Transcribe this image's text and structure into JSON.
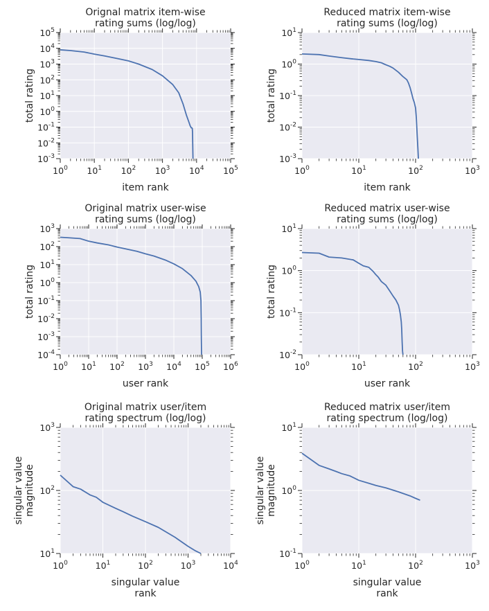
{
  "chart_data": [
    {
      "type": "line",
      "title": [
        "Orignal matrix item-wise",
        "rating sums (log/log)"
      ],
      "xlabel": [
        "item rank"
      ],
      "ylabel": [
        "total rating"
      ],
      "xscale": "log",
      "yscale": "log",
      "xlim": [
        0,
        5
      ],
      "ylim": [
        -3,
        5
      ],
      "x_ticks": [
        0,
        1,
        2,
        3,
        4,
        5
      ],
      "y_ticks": [
        -3,
        -2,
        -1,
        0,
        1,
        2,
        3,
        4,
        5
      ],
      "x": [
        1,
        2,
        5,
        10,
        20,
        50,
        100,
        200,
        500,
        1000,
        2000,
        3000,
        4000,
        5000,
        6000,
        6500,
        7000,
        7300,
        7500,
        7600,
        7700,
        7800,
        7850
      ],
      "y": [
        8000,
        7200,
        5800,
        4300,
        3300,
        2200,
        1600,
        1000,
        450,
        180,
        50,
        15,
        3,
        0.6,
        0.2,
        0.12,
        0.09,
        0.09,
        0.08,
        0.05,
        0.01,
        0.002,
        0.001
      ]
    },
    {
      "type": "line",
      "title": [
        "Reduced matrix item-wise",
        "rating sums (log/log)"
      ],
      "xlabel": [
        "item rank"
      ],
      "ylabel": [
        "total rating"
      ],
      "xscale": "log",
      "yscale": "log",
      "xlim": [
        0,
        3
      ],
      "ylim": [
        -3,
        1
      ],
      "x_ticks": [
        0,
        1,
        2,
        3
      ],
      "y_ticks": [
        -3,
        -2,
        -1,
        0,
        1
      ],
      "x": [
        1,
        2,
        3,
        5,
        8,
        10,
        15,
        20,
        25,
        30,
        35,
        40,
        50,
        60,
        70,
        75,
        80,
        85,
        90,
        95,
        100,
        103,
        105,
        107,
        110,
        112
      ],
      "y": [
        2.1,
        2.0,
        1.8,
        1.6,
        1.45,
        1.4,
        1.3,
        1.2,
        1.1,
        0.95,
        0.85,
        0.75,
        0.55,
        0.4,
        0.32,
        0.25,
        0.18,
        0.12,
        0.08,
        0.06,
        0.04,
        0.02,
        0.01,
        0.005,
        0.002,
        0.001
      ]
    },
    {
      "type": "line",
      "title": [
        "Original matrix user-wise",
        "rating sums (log/log)"
      ],
      "xlabel": [
        "user rank"
      ],
      "ylabel": [
        "total rating"
      ],
      "xscale": "log",
      "yscale": "log",
      "xlim": [
        0,
        6
      ],
      "ylim": [
        -4,
        3
      ],
      "x_ticks": [
        0,
        1,
        2,
        3,
        4,
        5,
        6
      ],
      "y_ticks": [
        -4,
        -3,
        -2,
        -1,
        0,
        1,
        2,
        3
      ],
      "x": [
        1,
        2,
        5,
        10,
        20,
        50,
        100,
        200,
        500,
        1000,
        2000,
        5000,
        10000,
        20000,
        40000,
        60000,
        75000,
        85000,
        90000,
        92000,
        93000,
        94000,
        95000
      ],
      "y": [
        330,
        310,
        280,
        200,
        160,
        125,
        95,
        75,
        55,
        40,
        30,
        18,
        11,
        6,
        2.5,
        1.2,
        0.6,
        0.3,
        0.1,
        0.01,
        0.001,
        0.0003,
        0.0001
      ]
    },
    {
      "type": "line",
      "title": [
        "Reduced matrix user-wise",
        "rating sums (log/log)"
      ],
      "xlabel": [
        "user rank"
      ],
      "ylabel": [
        "total rating"
      ],
      "xscale": "log",
      "yscale": "log",
      "xlim": [
        0,
        3
      ],
      "ylim": [
        -2,
        1
      ],
      "x_ticks": [
        0,
        1,
        2,
        3
      ],
      "y_ticks": [
        -2,
        -1,
        0,
        1
      ],
      "x": [
        1,
        2,
        3,
        5,
        8,
        10,
        12,
        15,
        18,
        20,
        22,
        25,
        30,
        35,
        40,
        45,
        50,
        52,
        54,
        56,
        57,
        58,
        59,
        60
      ],
      "y": [
        2.7,
        2.6,
        2.1,
        2.0,
        1.8,
        1.5,
        1.3,
        1.2,
        0.95,
        0.8,
        0.7,
        0.55,
        0.45,
        0.33,
        0.25,
        0.2,
        0.15,
        0.12,
        0.09,
        0.06,
        0.04,
        0.02,
        0.012,
        0.01
      ]
    },
    {
      "type": "line",
      "title": [
        "Original matrix user/item",
        "rating spectrum (log/log)"
      ],
      "xlabel": [
        "singular value",
        "rank"
      ],
      "ylabel": [
        "singular value",
        "magnitude"
      ],
      "xscale": "log",
      "yscale": "log",
      "xlim": [
        0,
        4
      ],
      "ylim": [
        1,
        3
      ],
      "x_ticks": [
        0,
        1,
        2,
        3,
        4
      ],
      "y_ticks": [
        1,
        2,
        3
      ],
      "x": [
        1,
        2,
        3,
        5,
        7,
        10,
        15,
        20,
        30,
        50,
        100,
        200,
        500,
        1000,
        1500,
        2000
      ],
      "y": [
        175,
        115,
        105,
        85,
        78,
        65,
        57,
        52,
        46,
        39,
        32,
        26,
        18,
        13,
        11,
        10
      ]
    },
    {
      "type": "line",
      "title": [
        "Reduced matrix user/item",
        "rating spectrum (log/log)"
      ],
      "xlabel": [
        "singular value",
        "rank"
      ],
      "ylabel": [
        "singular value",
        "magnitude"
      ],
      "xscale": "log",
      "yscale": "log",
      "xlim": [
        0,
        3
      ],
      "ylim": [
        -1,
        1
      ],
      "x_ticks": [
        0,
        1,
        2,
        3
      ],
      "y_ticks": [
        -1,
        0,
        1
      ],
      "x": [
        1,
        2,
        3,
        4,
        5,
        7,
        10,
        15,
        20,
        30,
        50,
        80,
        100,
        120
      ],
      "y": [
        3.9,
        2.5,
        2.2,
        2.0,
        1.85,
        1.7,
        1.45,
        1.3,
        1.2,
        1.1,
        0.95,
        0.82,
        0.75,
        0.7
      ]
    }
  ]
}
